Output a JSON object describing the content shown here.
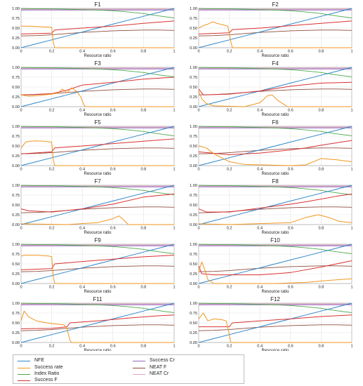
{
  "chart_data": {
    "type": "line",
    "panels": [
      {
        "title": "F1",
        "xlabel": "Resource ratio"
      },
      {
        "title": "F2",
        "xlabel": "Resource ratio"
      },
      {
        "title": "F3",
        "xlabel": "Resource ratio"
      },
      {
        "title": "F4",
        "xlabel": "Resource ratio"
      },
      {
        "title": "F5",
        "xlabel": "Resource ratio"
      },
      {
        "title": "F6",
        "xlabel": "Resource ratio"
      },
      {
        "title": "F7",
        "xlabel": "Resource ratio"
      },
      {
        "title": "F8",
        "xlabel": "Resource ratio"
      },
      {
        "title": "F9",
        "xlabel": "Resource ratio"
      },
      {
        "title": "F10",
        "xlabel": "Resource ratio"
      },
      {
        "title": "F11",
        "xlabel": "Resource ratio"
      },
      {
        "title": "F12",
        "xlabel": "Resource ratio"
      }
    ],
    "xlim": [
      0,
      1
    ],
    "ylim": [
      0,
      1
    ],
    "xticks": [
      "0",
      "0.2",
      "0.4",
      "0.6",
      "0.8",
      "1"
    ],
    "yticks": [
      "0.00",
      "0.25",
      "0.50",
      "0.75",
      "1.00"
    ],
    "grid": true,
    "legend_position": "bottom-left",
    "series_names": [
      "NFE",
      "Success rate",
      "Index Ratio",
      "Success F",
      "Success Cr",
      "NEAT F",
      "NEAT Cr"
    ],
    "colors": {
      "NFE": "#2e86c8",
      "Success rate": "#f0961e",
      "Index Ratio": "#4aa84a",
      "Success F": "#d93232",
      "Success Cr": "#9467bd",
      "NEAT F": "#8c4a3c",
      "NEAT Cr": "#e6a0c0"
    },
    "curves": {
      "x": [
        0,
        0.1,
        0.2,
        0.3,
        0.4,
        0.5,
        0.6,
        0.7,
        0.8,
        0.9,
        1.0
      ],
      "NFE": [
        0,
        0.1,
        0.2,
        0.3,
        0.4,
        0.5,
        0.6,
        0.7,
        0.8,
        0.9,
        1.0
      ],
      "Index Ratio": [
        1.0,
        0.99,
        0.99,
        0.98,
        0.97,
        0.96,
        0.94,
        0.91,
        0.87,
        0.81,
        0.76
      ],
      "Success Cr": [
        0.96,
        0.96,
        0.96,
        0.96,
        0.96,
        0.96,
        0.96,
        0.96,
        0.96,
        0.96,
        0.96
      ],
      "NEAT Cr": [
        0.98,
        0.98,
        0.98,
        0.98,
        0.98,
        0.98,
        0.98,
        0.98,
        0.98,
        0.98,
        0.98
      ],
      "NEAT F": [
        0.3,
        0.31,
        0.33,
        0.36,
        0.39,
        0.41,
        0.43,
        0.44,
        0.45,
        0.45,
        0.44
      ]
    },
    "per_panel": [
      {
        "success_rate": [
          [
            0,
            0.55
          ],
          [
            0.05,
            0.55
          ],
          [
            0.1,
            0.54
          ],
          [
            0.15,
            0.53
          ],
          [
            0.2,
            0.52
          ],
          [
            0.21,
            0.15
          ],
          [
            0.22,
            0.0
          ],
          [
            1,
            0.0
          ]
        ],
        "success_f": [
          [
            0,
            0.35
          ],
          [
            0.2,
            0.37
          ],
          [
            0.22,
            0.45
          ],
          [
            0.4,
            0.5
          ],
          [
            0.6,
            0.55
          ],
          [
            0.8,
            0.62
          ],
          [
            1,
            0.68
          ]
        ]
      },
      {
        "success_rate": [
          [
            0,
            0.5
          ],
          [
            0.03,
            0.56
          ],
          [
            0.06,
            0.6
          ],
          [
            0.09,
            0.66
          ],
          [
            0.12,
            0.62
          ],
          [
            0.16,
            0.58
          ],
          [
            0.19,
            0.55
          ],
          [
            0.21,
            0.15
          ],
          [
            0.22,
            0.0
          ],
          [
            1,
            0.0
          ]
        ],
        "success_f": [
          [
            0,
            0.35
          ],
          [
            0.2,
            0.38
          ],
          [
            0.22,
            0.46
          ],
          [
            0.4,
            0.5
          ],
          [
            0.6,
            0.56
          ],
          [
            0.8,
            0.62
          ],
          [
            1,
            0.68
          ]
        ]
      },
      {
        "success_rate": [
          [
            0,
            0.3
          ],
          [
            0.05,
            0.27
          ],
          [
            0.1,
            0.28
          ],
          [
            0.15,
            0.3
          ],
          [
            0.2,
            0.32
          ],
          [
            0.24,
            0.35
          ],
          [
            0.27,
            0.45
          ],
          [
            0.3,
            0.35
          ],
          [
            0.33,
            0.48
          ],
          [
            0.36,
            0.4
          ],
          [
            0.39,
            0.25
          ],
          [
            0.41,
            0.05
          ],
          [
            0.42,
            0.0
          ],
          [
            1,
            0.0
          ]
        ],
        "success_f": [
          [
            0,
            0.3
          ],
          [
            0.2,
            0.33
          ],
          [
            0.3,
            0.42
          ],
          [
            0.4,
            0.55
          ],
          [
            0.6,
            0.62
          ],
          [
            0.8,
            0.7
          ],
          [
            1,
            0.75
          ]
        ]
      },
      {
        "success_rate": [
          [
            0,
            0.4
          ],
          [
            0.02,
            0.2
          ],
          [
            0.05,
            0.08
          ],
          [
            0.1,
            0.02
          ],
          [
            0.3,
            0.0
          ],
          [
            0.4,
            0.1
          ],
          [
            0.45,
            0.28
          ],
          [
            0.48,
            0.3
          ],
          [
            0.52,
            0.15
          ],
          [
            0.56,
            0.05
          ],
          [
            0.58,
            0.0
          ],
          [
            1,
            0.0
          ]
        ],
        "success_f": [
          [
            0,
            0.45
          ],
          [
            0.03,
            0.3
          ],
          [
            0.2,
            0.32
          ],
          [
            0.4,
            0.4
          ],
          [
            0.6,
            0.52
          ],
          [
            0.8,
            0.6
          ],
          [
            1,
            0.62
          ]
        ]
      },
      {
        "success_rate": [
          [
            0,
            0.45
          ],
          [
            0.03,
            0.6
          ],
          [
            0.06,
            0.62
          ],
          [
            0.1,
            0.63
          ],
          [
            0.15,
            0.62
          ],
          [
            0.2,
            0.6
          ],
          [
            0.21,
            0.15
          ],
          [
            0.22,
            0.0
          ],
          [
            1,
            0.0
          ]
        ],
        "success_f": [
          [
            0,
            0.3
          ],
          [
            0.2,
            0.35
          ],
          [
            0.22,
            0.45
          ],
          [
            0.4,
            0.5
          ],
          [
            0.6,
            0.56
          ],
          [
            0.8,
            0.62
          ],
          [
            1,
            0.68
          ]
        ]
      },
      {
        "success_rate": [
          [
            0,
            0.5
          ],
          [
            0.05,
            0.45
          ],
          [
            0.1,
            0.3
          ],
          [
            0.2,
            0.1
          ],
          [
            0.3,
            0.03
          ],
          [
            0.6,
            0.0
          ],
          [
            0.7,
            0.02
          ],
          [
            0.8,
            0.18
          ],
          [
            0.9,
            0.15
          ],
          [
            1,
            0.1
          ]
        ],
        "success_f": [
          [
            0,
            0.35
          ],
          [
            0.2,
            0.28
          ],
          [
            0.4,
            0.32
          ],
          [
            0.6,
            0.4
          ],
          [
            0.7,
            0.45
          ],
          [
            0.8,
            0.52
          ],
          [
            0.9,
            0.58
          ],
          [
            1,
            0.64
          ]
        ]
      },
      {
        "success_rate": [
          [
            0,
            0.02
          ],
          [
            0.3,
            0.0
          ],
          [
            0.5,
            0.05
          ],
          [
            0.6,
            0.15
          ],
          [
            0.64,
            0.22
          ],
          [
            0.67,
            0.12
          ],
          [
            0.7,
            0.0
          ],
          [
            1,
            0.0
          ]
        ],
        "success_f": [
          [
            0,
            0.4
          ],
          [
            0.05,
            0.35
          ],
          [
            0.2,
            0.32
          ],
          [
            0.4,
            0.4
          ],
          [
            0.6,
            0.52
          ],
          [
            0.8,
            0.7
          ],
          [
            1,
            0.78
          ]
        ]
      },
      {
        "success_rate": [
          [
            0,
            0.02
          ],
          [
            0.2,
            0.0
          ],
          [
            0.6,
            0.05
          ],
          [
            0.7,
            0.18
          ],
          [
            0.78,
            0.25
          ],
          [
            0.85,
            0.18
          ],
          [
            0.92,
            0.08
          ],
          [
            1,
            0.05
          ]
        ],
        "success_f": [
          [
            0,
            0.4
          ],
          [
            0.05,
            0.32
          ],
          [
            0.2,
            0.32
          ],
          [
            0.4,
            0.42
          ],
          [
            0.6,
            0.52
          ],
          [
            0.7,
            0.58
          ],
          [
            0.8,
            0.65
          ],
          [
            0.9,
            0.72
          ],
          [
            1,
            0.78
          ]
        ]
      },
      {
        "success_rate": [
          [
            0,
            0.7
          ],
          [
            0.03,
            0.72
          ],
          [
            0.1,
            0.72
          ],
          [
            0.18,
            0.7
          ],
          [
            0.2,
            0.68
          ],
          [
            0.21,
            0.2
          ],
          [
            0.22,
            0.0
          ],
          [
            1,
            0.0
          ]
        ],
        "success_f": [
          [
            0,
            0.35
          ],
          [
            0.2,
            0.38
          ],
          [
            0.22,
            0.5
          ],
          [
            0.4,
            0.56
          ],
          [
            0.6,
            0.62
          ],
          [
            0.8,
            0.68
          ],
          [
            1,
            0.72
          ]
        ]
      },
      {
        "success_rate": [
          [
            0,
            0.3
          ],
          [
            0.02,
            0.55
          ],
          [
            0.04,
            0.35
          ],
          [
            0.06,
            0.1
          ],
          [
            0.1,
            0.0
          ],
          [
            0.5,
            0.0
          ],
          [
            0.7,
            0.03
          ],
          [
            0.85,
            0.08
          ],
          [
            1,
            0.12
          ]
        ],
        "success_f": [
          [
            0,
            0.45
          ],
          [
            0.02,
            0.25
          ],
          [
            0.1,
            0.22
          ],
          [
            0.4,
            0.22
          ],
          [
            0.6,
            0.28
          ],
          [
            0.8,
            0.42
          ],
          [
            0.9,
            0.5
          ],
          [
            1,
            0.58
          ]
        ]
      },
      {
        "success_rate": [
          [
            0,
            0.55
          ],
          [
            0.02,
            0.8
          ],
          [
            0.05,
            0.65
          ],
          [
            0.1,
            0.55
          ],
          [
            0.2,
            0.48
          ],
          [
            0.28,
            0.45
          ],
          [
            0.3,
            0.35
          ],
          [
            0.32,
            0.05
          ],
          [
            0.33,
            0.0
          ],
          [
            1,
            0.0
          ]
        ],
        "success_f": [
          [
            0,
            0.35
          ],
          [
            0.2,
            0.36
          ],
          [
            0.3,
            0.4
          ],
          [
            0.32,
            0.5
          ],
          [
            0.5,
            0.55
          ],
          [
            0.7,
            0.62
          ],
          [
            0.9,
            0.68
          ],
          [
            1,
            0.7
          ]
        ]
      },
      {
        "success_rate": [
          [
            0,
            0.6
          ],
          [
            0.03,
            0.75
          ],
          [
            0.06,
            0.55
          ],
          [
            0.1,
            0.6
          ],
          [
            0.15,
            0.58
          ],
          [
            0.18,
            0.55
          ],
          [
            0.2,
            0.2
          ],
          [
            0.21,
            0.0
          ],
          [
            1,
            0.0
          ]
        ],
        "success_f": [
          [
            0,
            0.4
          ],
          [
            0.2,
            0.4
          ],
          [
            0.22,
            0.5
          ],
          [
            0.4,
            0.55
          ],
          [
            0.6,
            0.6
          ],
          [
            0.8,
            0.66
          ],
          [
            1,
            0.7
          ]
        ]
      }
    ]
  }
}
